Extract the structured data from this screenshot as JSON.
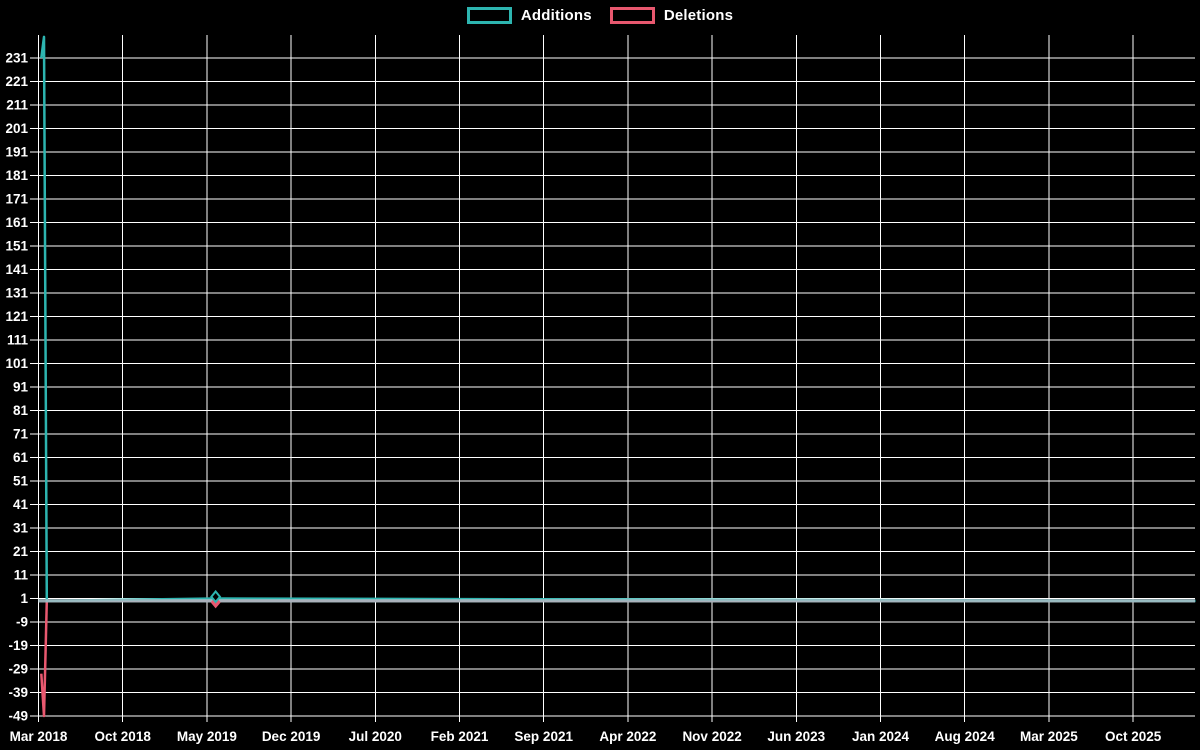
{
  "legend": {
    "items": [
      {
        "label": "Additions",
        "color": "#2db5b0"
      },
      {
        "label": "Deletions",
        "color": "#e8586f"
      }
    ]
  },
  "chart_data": {
    "type": "line",
    "title": "",
    "legend_entries": [
      "Additions",
      "Deletions"
    ],
    "legend_position": "top-center",
    "background_color": "#000000",
    "grid": true,
    "grid_color": "#ffffff",
    "text_color": "#ffffff",
    "zero_line_color": "#a4bbc3",
    "x_unit": "weeks since Mar 2018",
    "x_tick_labels": [
      "Mar 2018",
      "Oct 2018",
      "May 2019",
      "Dec 2019",
      "Jul 2020",
      "Feb 2021",
      "Sep 2021",
      "Apr 2022",
      "Nov 2022",
      "Jun 2023",
      "Jan 2024",
      "Aug 2024",
      "Mar 2025",
      "Oct 2025"
    ],
    "y_ticks": [
      231,
      221,
      211,
      201,
      191,
      181,
      171,
      161,
      151,
      141,
      131,
      121,
      111,
      101,
      91,
      81,
      71,
      61,
      51,
      41,
      31,
      21,
      11,
      1,
      -9,
      -19,
      -29,
      -39,
      -49
    ],
    "ylim": [
      -49,
      240
    ],
    "series": [
      {
        "name": "Additions",
        "color": "#2db5b0",
        "points_week_value": [
          [
            1,
            231
          ],
          [
            2,
            240
          ],
          [
            3,
            0
          ],
          [
            64,
            1
          ],
          [
            418,
            0
          ]
        ],
        "marker": {
          "week": 64,
          "value": 1,
          "shape": "diamond"
        }
      },
      {
        "name": "Deletions",
        "color": "#e8586f",
        "points_week_value": [
          [
            1,
            -31
          ],
          [
            2,
            -49
          ],
          [
            3,
            0
          ],
          [
            64,
            0
          ],
          [
            418,
            0
          ]
        ],
        "marker": {
          "week": 64,
          "value": 0,
          "shape": "diamond"
        }
      }
    ]
  }
}
